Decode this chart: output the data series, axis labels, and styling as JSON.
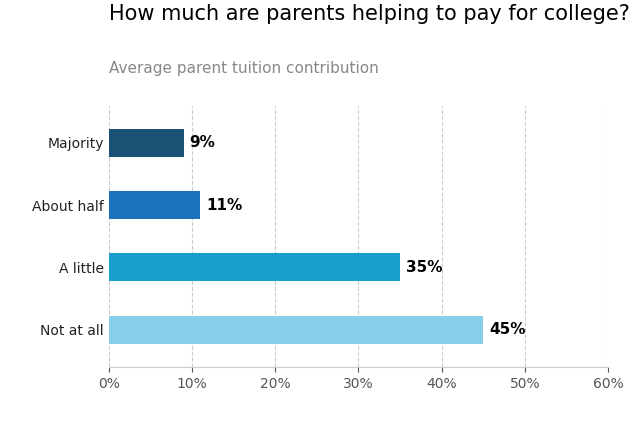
{
  "title": "How much are parents helping to pay for college?",
  "subtitle": "Average parent tuition contribution",
  "categories": [
    "Majority",
    "About half",
    "A little",
    "Not at all"
  ],
  "values": [
    9,
    11,
    35,
    45
  ],
  "bar_colors": [
    "#1a5276",
    "#1a72bb",
    "#1a9fcc",
    "#87ceeb"
  ],
  "xlim": [
    0,
    60
  ],
  "xticks": [
    0,
    10,
    20,
    30,
    40,
    50,
    60
  ],
  "title_fontsize": 15,
  "subtitle_fontsize": 11,
  "label_fontsize": 11,
  "tick_fontsize": 10,
  "background_color": "#ffffff",
  "grid_color": "#cccccc",
  "bar_height": 0.45
}
